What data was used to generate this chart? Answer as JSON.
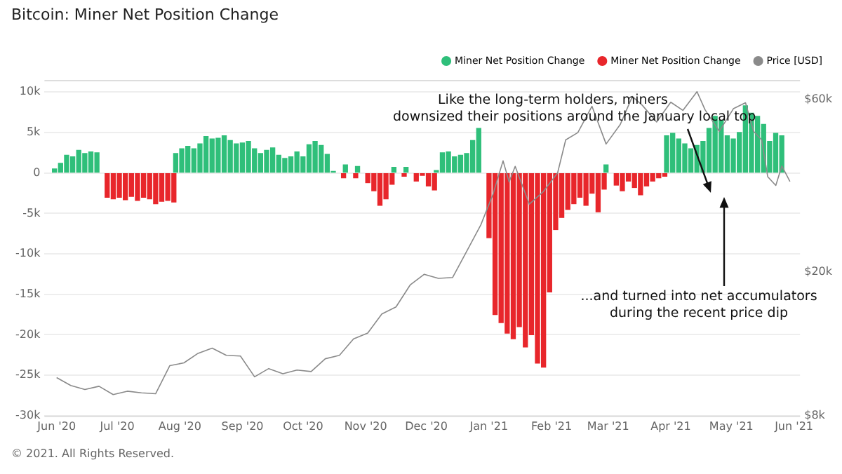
{
  "chart_data": {
    "type": "bar",
    "title": "Bitcoin: Miner Net Position Change",
    "annotations": [
      "Like the long-term holders, miners downsized their positions around the January local top",
      "...and turned into net accumulators during the recent price dip",
      "© 2021. All Rights Reserved."
    ],
    "x": [
      "2020-06-01",
      "2020-06-04",
      "2020-06-07",
      "2020-06-10",
      "2020-06-13",
      "2020-06-16",
      "2020-06-19",
      "2020-06-22",
      "2020-06-25",
      "2020-06-28",
      "2020-07-01",
      "2020-07-04",
      "2020-07-07",
      "2020-07-10",
      "2020-07-13",
      "2020-07-16",
      "2020-07-19",
      "2020-07-22",
      "2020-07-25",
      "2020-07-28",
      "2020-07-31",
      "2020-08-03",
      "2020-08-06",
      "2020-08-09",
      "2020-08-12",
      "2020-08-15",
      "2020-08-18",
      "2020-08-21",
      "2020-08-24",
      "2020-08-27",
      "2020-08-30",
      "2020-09-02",
      "2020-09-05",
      "2020-09-08",
      "2020-09-11",
      "2020-09-14",
      "2020-09-17",
      "2020-09-20",
      "2020-09-23",
      "2020-09-26",
      "2020-09-29",
      "2020-10-02",
      "2020-10-05",
      "2020-10-08",
      "2020-10-11",
      "2020-10-14",
      "2020-10-17",
      "2020-10-20",
      "2020-10-23",
      "2020-10-26",
      "2020-10-29",
      "2020-11-01",
      "2020-11-04",
      "2020-11-07",
      "2020-11-10",
      "2020-11-13",
      "2020-11-16",
      "2020-11-19",
      "2020-11-22",
      "2020-11-25",
      "2020-11-28",
      "2020-12-01",
      "2020-12-04",
      "2020-12-07",
      "2020-12-10",
      "2020-12-13",
      "2020-12-16",
      "2020-12-19",
      "2020-12-22",
      "2020-12-25",
      "2020-12-28",
      "2020-12-31",
      "2021-01-03",
      "2021-01-06",
      "2021-01-09",
      "2021-01-12",
      "2021-01-15",
      "2021-01-18",
      "2021-01-21",
      "2021-01-24",
      "2021-01-27",
      "2021-01-30",
      "2021-02-02",
      "2021-02-05",
      "2021-02-08",
      "2021-02-11",
      "2021-02-14",
      "2021-02-17",
      "2021-02-20",
      "2021-02-23",
      "2021-02-26",
      "2021-03-01",
      "2021-03-04",
      "2021-03-07",
      "2021-03-10",
      "2021-03-13",
      "2021-03-16",
      "2021-03-19",
      "2021-03-22",
      "2021-03-25",
      "2021-03-28",
      "2021-03-31",
      "2021-04-03",
      "2021-04-06",
      "2021-04-09",
      "2021-04-12",
      "2021-04-15",
      "2021-04-18",
      "2021-04-21",
      "2021-04-24",
      "2021-04-27",
      "2021-04-30",
      "2021-05-03",
      "2021-05-06",
      "2021-05-09",
      "2021-05-12",
      "2021-05-15",
      "2021-05-18",
      "2021-05-21",
      "2021-05-24",
      "2021-05-27"
    ],
    "series": [
      {
        "name": "Miner Net Position Change",
        "color": "#2fbf7a",
        "values": [
          500,
          1200,
          2200,
          2000,
          2800,
          2400,
          2600,
          2500,
          null,
          null,
          null,
          null,
          null,
          null,
          null,
          null,
          null,
          null,
          null,
          null,
          2400,
          3000,
          3300,
          3000,
          3600,
          4500,
          4200,
          4300,
          4600,
          4000,
          3600,
          3700,
          3900,
          3000,
          2400,
          2800,
          3100,
          2200,
          1800,
          2000,
          2600,
          2000,
          3500,
          3900,
          3400,
          2300,
          200,
          null,
          1000,
          null,
          800,
          null,
          null,
          null,
          null,
          null,
          700,
          null,
          700,
          null,
          null,
          null,
          null,
          300,
          2500,
          2600,
          2000,
          2200,
          2400,
          4000,
          5500,
          null,
          null,
          null,
          null,
          null,
          null,
          null,
          null,
          null,
          null,
          null,
          null,
          null,
          null,
          null,
          null,
          null,
          null,
          null,
          null,
          1000,
          null,
          null,
          null,
          null,
          null,
          null,
          null,
          null,
          null,
          4600,
          4900,
          4200,
          3600,
          3000,
          3400,
          3900,
          5500,
          7000,
          6500,
          4600,
          4200,
          5000,
          8300,
          7400,
          7000,
          6000,
          3900,
          4900,
          4600
        ]
      },
      {
        "name": "Miner Net Position Change",
        "color": "#e8262b",
        "values": [
          null,
          null,
          null,
          null,
          null,
          null,
          null,
          null,
          -3000,
          -3200,
          -3000,
          -3300,
          -2900,
          -3400,
          -3000,
          -3200,
          -3800,
          -3500,
          -3400,
          -3600,
          null,
          null,
          null,
          null,
          null,
          null,
          null,
          null,
          null,
          null,
          null,
          null,
          null,
          null,
          null,
          null,
          null,
          null,
          null,
          null,
          null,
          null,
          null,
          null,
          null,
          null,
          null,
          -600,
          null,
          -600,
          null,
          -1200,
          -2200,
          -4000,
          -3200,
          -1400,
          null,
          -400,
          null,
          -1000,
          -300,
          -1600,
          -2100,
          null,
          null,
          null,
          null,
          null,
          null,
          null,
          null,
          -8000,
          -17500,
          -18500,
          -19800,
          -20500,
          -19000,
          -21500,
          -20000,
          -23500,
          -24000,
          -14700,
          -7000,
          -5500,
          -4500,
          -3800,
          -3000,
          -4000,
          -2500,
          -4800,
          -2000,
          null,
          -1500,
          -2200,
          -1000,
          -1800,
          -2700,
          -1600,
          -1000,
          -600,
          -400,
          null,
          null,
          null,
          null,
          null,
          null,
          null,
          null,
          null,
          null,
          null,
          null,
          null,
          null,
          null,
          null,
          null,
          null,
          null,
          null
        ]
      },
      {
        "name": "Price [USD]",
        "type": "line",
        "axis": "y2",
        "color": "#8a8a8a",
        "x": [
          "2020-06-01",
          "2020-06-08",
          "2020-06-15",
          "2020-06-22",
          "2020-06-29",
          "2020-07-06",
          "2020-07-13",
          "2020-07-20",
          "2020-07-27",
          "2020-08-03",
          "2020-08-10",
          "2020-08-17",
          "2020-08-24",
          "2020-08-31",
          "2020-09-07",
          "2020-09-14",
          "2020-09-21",
          "2020-09-28",
          "2020-10-05",
          "2020-10-12",
          "2020-10-19",
          "2020-10-26",
          "2020-11-02",
          "2020-11-09",
          "2020-11-16",
          "2020-11-23",
          "2020-11-30",
          "2020-12-07",
          "2020-12-14",
          "2020-12-21",
          "2020-12-28",
          "2021-01-03",
          "2021-01-08",
          "2021-01-11",
          "2021-01-14",
          "2021-01-21",
          "2021-01-28",
          "2021-02-04",
          "2021-02-08",
          "2021-02-14",
          "2021-02-21",
          "2021-02-28",
          "2021-03-07",
          "2021-03-13",
          "2021-03-18",
          "2021-03-25",
          "2021-04-01",
          "2021-04-07",
          "2021-04-14",
          "2021-04-18",
          "2021-04-25",
          "2021-05-02",
          "2021-05-08",
          "2021-05-12",
          "2021-05-16",
          "2021-05-19",
          "2021-05-23",
          "2021-05-26",
          "2021-05-30"
        ],
        "values": [
          10200,
          9700,
          9450,
          9650,
          9150,
          9350,
          9250,
          9200,
          11000,
          11200,
          11900,
          12300,
          11750,
          11700,
          10250,
          10800,
          10450,
          10700,
          10600,
          11500,
          11750,
          13050,
          13550,
          15300,
          16000,
          18400,
          19700,
          19200,
          19300,
          22800,
          27000,
          32800,
          40600,
          35500,
          39200,
          30800,
          33400,
          37600,
          46400,
          48600,
          57500,
          45200,
          51200,
          61200,
          57800,
          52000,
          59000,
          56000,
          63100,
          56200,
          49000,
          56600,
          58800,
          49000,
          46400,
          36700,
          34700,
          39300,
          35600
        ]
      }
    ],
    "xlim": [
      "2020-05-26",
      "2021-06-04"
    ],
    "xticks": [
      {
        "value": "2020-06-01",
        "label": "Jun '20"
      },
      {
        "value": "2020-07-01",
        "label": "Jul '20"
      },
      {
        "value": "2020-08-01",
        "label": "Aug '20"
      },
      {
        "value": "2020-09-01",
        "label": "Sep '20"
      },
      {
        "value": "2020-10-01",
        "label": "Oct '20"
      },
      {
        "value": "2020-11-01",
        "label": "Nov '20"
      },
      {
        "value": "2020-12-01",
        "label": "Dec '20"
      },
      {
        "value": "2021-01-01",
        "label": "Jan '21"
      },
      {
        "value": "2021-02-01",
        "label": "Feb '21"
      },
      {
        "value": "2021-03-01",
        "label": "Mar '21"
      },
      {
        "value": "2021-04-01",
        "label": "Apr '21"
      },
      {
        "value": "2021-05-01",
        "label": "May '21"
      },
      {
        "value": "2021-06-01",
        "label": "Jun '21"
      }
    ],
    "ylim": [
      -30000,
      11500
    ],
    "yticks": [
      {
        "value": -30000,
        "label": "-30k"
      },
      {
        "value": -25000,
        "label": "-25k"
      },
      {
        "value": -20000,
        "label": "-20k"
      },
      {
        "value": -15000,
        "label": "-15k"
      },
      {
        "value": -10000,
        "label": "-10k"
      },
      {
        "value": -5000,
        "label": "-5k"
      },
      0,
      {
        "value": 5000,
        "label": "5k"
      },
      {
        "value": 10000,
        "label": "10k"
      }
    ],
    "y2lim": [
      8000,
      68000
    ],
    "y2ticks": [
      {
        "value": 8000,
        "label": "$8k"
      },
      {
        "value": 20000,
        "label": "$20k"
      },
      {
        "value": 60000,
        "label": "$60k"
      }
    ],
    "log": "y2",
    "grid": "y",
    "legend": "top right",
    "marker": "none"
  }
}
